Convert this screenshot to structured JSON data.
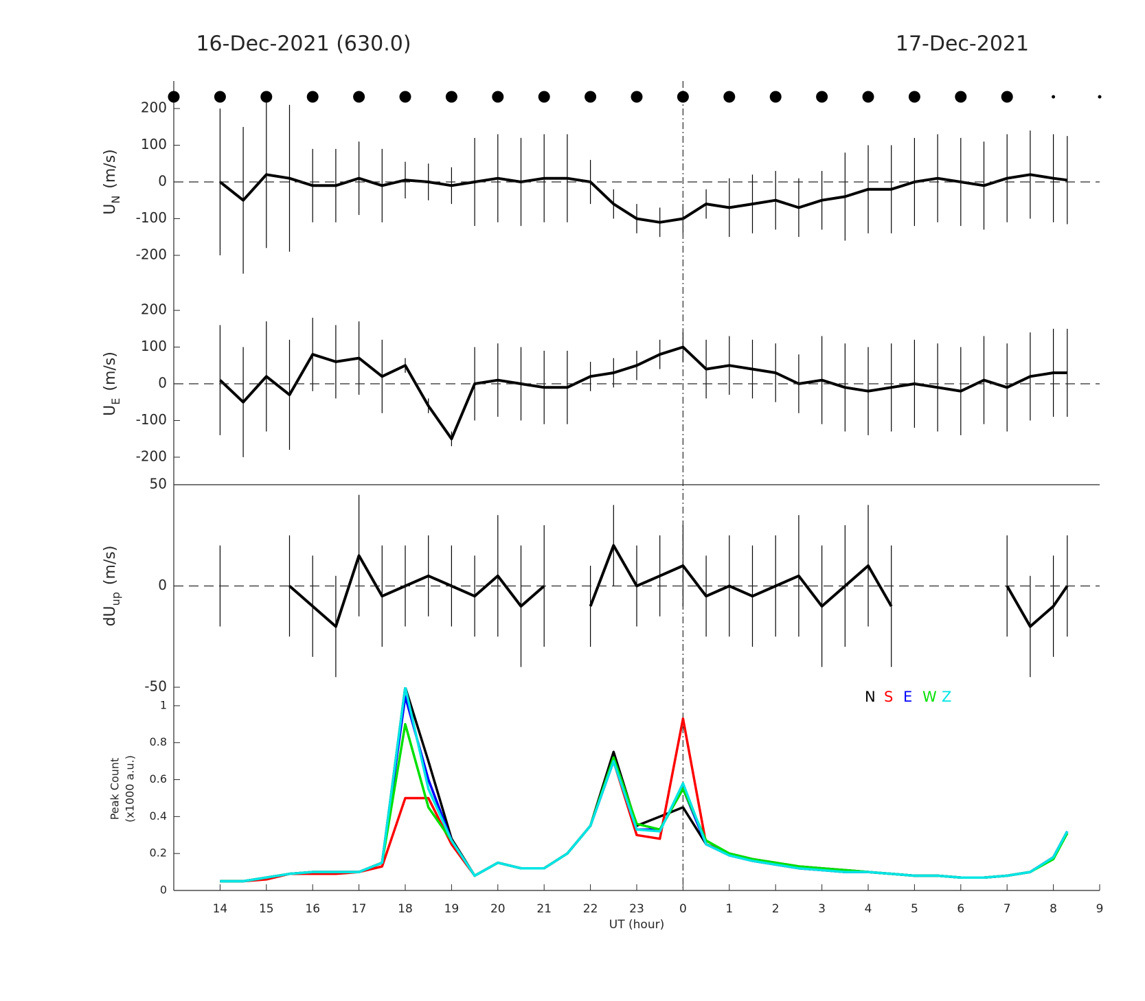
{
  "chart_data": [
    {
      "type": "errorbar",
      "title": "16-Dec-2021 (630.0)",
      "title_right": "17-Dec-2021",
      "x": [
        14,
        14.5,
        15,
        15.5,
        16,
        16.5,
        17,
        17.5,
        18,
        18.5,
        19,
        19.5,
        20,
        20.5,
        21,
        21.5,
        22,
        22.5,
        23,
        23.5,
        24,
        24.5,
        25,
        25.5,
        26,
        26.5,
        27,
        27.5,
        28,
        28.5,
        29,
        29.5,
        30,
        30.5,
        31,
        31.5,
        32,
        32.3
      ],
      "values": [
        0,
        -50,
        20,
        10,
        -10,
        -10,
        10,
        -10,
        5,
        0,
        -10,
        0,
        10,
        0,
        10,
        10,
        0,
        -60,
        -100,
        -110,
        -100,
        -60,
        -70,
        -60,
        -50,
        -70,
        -50,
        -40,
        -20,
        -20,
        0,
        10,
        0,
        -10,
        10,
        20,
        10,
        5
      ],
      "errors": [
        200,
        200,
        200,
        200,
        100,
        100,
        100,
        100,
        50,
        50,
        50,
        120,
        120,
        120,
        120,
        120,
        60,
        40,
        40,
        40,
        40,
        40,
        80,
        80,
        80,
        80,
        80,
        120,
        120,
        120,
        120,
        120,
        120,
        120,
        120,
        120,
        120,
        120
      ],
      "color": "#000000",
      "xlim": [
        13,
        33
      ],
      "ylim": [
        -275,
        275
      ],
      "yticks": [
        -200,
        -100,
        0,
        100,
        200
      ],
      "ylabel": {
        "main": "U",
        "sub": "N",
        "unit": "(m/s)"
      },
      "zero_line": true,
      "vline": 24,
      "sky_markers": {
        "x": [
          13,
          14,
          15,
          16,
          17,
          18,
          19,
          20,
          21,
          22,
          23,
          24,
          25,
          26,
          27,
          28,
          29,
          30,
          31,
          32,
          33
        ],
        "size": [
          "large",
          "large",
          "large",
          "large",
          "large",
          "large",
          "large",
          "large",
          "large",
          "large",
          "large",
          "large",
          "large",
          "large",
          "large",
          "large",
          "large",
          "large",
          "large",
          "small",
          "small"
        ]
      }
    },
    {
      "type": "errorbar",
      "x": [
        14,
        14.5,
        15,
        15.5,
        16,
        16.5,
        17,
        17.5,
        18,
        18.5,
        19,
        19.5,
        20,
        20.5,
        21,
        21.5,
        22,
        22.5,
        23,
        23.5,
        24,
        24.5,
        25,
        25.5,
        26,
        26.5,
        27,
        27.5,
        28,
        28.5,
        29,
        29.5,
        30,
        30.5,
        31,
        31.5,
        32,
        32.3
      ],
      "values": [
        10,
        -50,
        20,
        -30,
        80,
        60,
        70,
        20,
        50,
        -60,
        -150,
        0,
        10,
        0,
        -10,
        -10,
        20,
        30,
        50,
        80,
        100,
        40,
        50,
        40,
        30,
        0,
        10,
        -10,
        -20,
        -10,
        0,
        -10,
        -20,
        10,
        -10,
        20,
        30,
        30
      ],
      "errors": [
        150,
        150,
        150,
        150,
        100,
        100,
        100,
        100,
        20,
        20,
        20,
        100,
        100,
        100,
        100,
        100,
        40,
        40,
        40,
        40,
        40,
        80,
        80,
        80,
        80,
        80,
        120,
        120,
        120,
        120,
        120,
        120,
        120,
        120,
        120,
        120,
        120,
        120
      ],
      "color": "#000000",
      "xlim": [
        13,
        33
      ],
      "ylim": [
        -275,
        275
      ],
      "yticks": [
        -200,
        -100,
        0,
        100,
        200
      ],
      "ylabel": {
        "main": "U",
        "sub": "E",
        "unit": "(m/s)"
      },
      "zero_line": true
    },
    {
      "type": "errorbar",
      "x": [
        14,
        14.5,
        15,
        15.5,
        16,
        16.5,
        17,
        17.5,
        18,
        18.5,
        19,
        19.5,
        20,
        20.5,
        21,
        21.5,
        22,
        22.5,
        23,
        23.5,
        24,
        24.5,
        25,
        25.5,
        26,
        26.5,
        27,
        27.5,
        28,
        28.5,
        29,
        29.5,
        30,
        30.5,
        31,
        31.5,
        32,
        32.3
      ],
      "values": [
        0,
        null,
        null,
        0,
        -10,
        -20,
        15,
        -5,
        0,
        5,
        0,
        -5,
        5,
        -10,
        0,
        null,
        -10,
        20,
        0,
        5,
        10,
        -5,
        0,
        -5,
        0,
        5,
        -10,
        0,
        10,
        -10,
        null,
        null,
        null,
        null,
        0,
        -20,
        -10,
        0
      ],
      "errors": [
        20,
        null,
        null,
        25,
        25,
        25,
        30,
        25,
        20,
        20,
        20,
        20,
        30,
        30,
        30,
        null,
        20,
        20,
        20,
        20,
        20,
        20,
        25,
        25,
        25,
        30,
        30,
        30,
        30,
        30,
        null,
        null,
        null,
        null,
        25,
        25,
        25,
        25
      ],
      "color": "#000000",
      "xlim": [
        13,
        33
      ],
      "ylim": [
        -50,
        50
      ],
      "yticks": [
        -50,
        0,
        50
      ],
      "ylabel": {
        "main": "dU",
        "sub": "up",
        "unit": "(m/s)"
      },
      "zero_line": true
    },
    {
      "type": "line",
      "x": [
        14,
        14.5,
        15,
        15.5,
        16,
        16.5,
        17,
        17.5,
        18,
        18.5,
        19,
        19.5,
        20,
        20.5,
        21,
        21.5,
        22,
        22.5,
        23,
        23.5,
        24,
        24.5,
        25,
        25.5,
        26,
        26.5,
        27,
        27.5,
        28,
        28.5,
        29,
        29.5,
        30,
        30.5,
        31,
        31.5,
        32,
        32.3
      ],
      "series": [
        {
          "name": "N",
          "color": "#000000",
          "values": [
            0.05,
            0.05,
            0.07,
            0.09,
            0.1,
            0.1,
            0.1,
            0.15,
            1.1,
            0.7,
            0.28,
            0.08,
            0.15,
            0.12,
            0.12,
            0.2,
            0.35,
            0.75,
            0.35,
            0.4,
            0.45,
            0.25,
            0.2,
            0.17,
            0.15,
            0.13,
            0.12,
            0.11,
            0.1,
            0.09,
            0.08,
            0.08,
            0.07,
            0.07,
            0.08,
            0.1,
            0.18,
            0.32
          ]
        },
        {
          "name": "S",
          "color": "#ff0000",
          "values": [
            0.05,
            0.05,
            0.06,
            0.09,
            0.09,
            0.09,
            0.1,
            0.13,
            0.5,
            0.5,
            0.25,
            0.08,
            0.15,
            0.12,
            0.12,
            0.2,
            0.35,
            0.7,
            0.3,
            0.28,
            0.93,
            0.25,
            0.2,
            0.16,
            0.14,
            0.12,
            0.11,
            0.1,
            0.1,
            0.09,
            0.08,
            0.08,
            0.07,
            0.07,
            0.08,
            0.1,
            0.18,
            0.31
          ]
        },
        {
          "name": "E",
          "color": "#0000ff",
          "values": [
            0.05,
            0.05,
            0.07,
            0.09,
            0.1,
            0.1,
            0.1,
            0.15,
            1.05,
            0.6,
            0.27,
            0.08,
            0.15,
            0.12,
            0.12,
            0.2,
            0.35,
            0.7,
            0.33,
            0.33,
            0.55,
            0.25,
            0.19,
            0.16,
            0.14,
            0.12,
            0.11,
            0.1,
            0.1,
            0.09,
            0.08,
            0.08,
            0.07,
            0.07,
            0.08,
            0.1,
            0.18,
            0.32
          ]
        },
        {
          "name": "W",
          "color": "#00e000",
          "values": [
            0.05,
            0.05,
            0.07,
            0.09,
            0.1,
            0.1,
            0.1,
            0.15,
            0.9,
            0.45,
            0.27,
            0.08,
            0.15,
            0.12,
            0.12,
            0.2,
            0.35,
            0.72,
            0.36,
            0.33,
            0.55,
            0.27,
            0.2,
            0.17,
            0.15,
            0.13,
            0.12,
            0.11,
            0.1,
            0.09,
            0.08,
            0.08,
            0.07,
            0.07,
            0.08,
            0.1,
            0.17,
            0.31
          ]
        },
        {
          "name": "Z",
          "color": "#00e5e5",
          "values": [
            0.05,
            0.05,
            0.07,
            0.09,
            0.1,
            0.1,
            0.1,
            0.15,
            1.1,
            0.55,
            0.27,
            0.08,
            0.15,
            0.12,
            0.12,
            0.2,
            0.35,
            0.7,
            0.33,
            0.32,
            0.58,
            0.25,
            0.19,
            0.16,
            0.14,
            0.12,
            0.11,
            0.1,
            0.1,
            0.09,
            0.08,
            0.08,
            0.07,
            0.07,
            0.08,
            0.1,
            0.18,
            0.32
          ]
        }
      ],
      "xlim": [
        13,
        33
      ],
      "ylim": [
        0,
        1.1
      ],
      "yticks": [
        0,
        0.2,
        0.4,
        0.6,
        0.8,
        1
      ],
      "ylabel": [
        "Peak Count",
        "(x1000 a.u.)"
      ],
      "xlabel": "UT (hour)",
      "legend": "upper right",
      "xticks": [
        14,
        15,
        16,
        17,
        18,
        19,
        20,
        21,
        22,
        23,
        {
          "value": 24,
          "label": "0"
        },
        {
          "value": 25,
          "label": "1"
        },
        {
          "value": 26,
          "label": "2"
        },
        {
          "value": 27,
          "label": "3"
        },
        {
          "value": 28,
          "label": "4"
        },
        {
          "value": 29,
          "label": "5"
        },
        {
          "value": 30,
          "label": "6"
        },
        {
          "value": 31,
          "label": "7"
        },
        {
          "value": 32,
          "label": "8"
        },
        {
          "value": 33,
          "label": "9"
        }
      ]
    }
  ]
}
